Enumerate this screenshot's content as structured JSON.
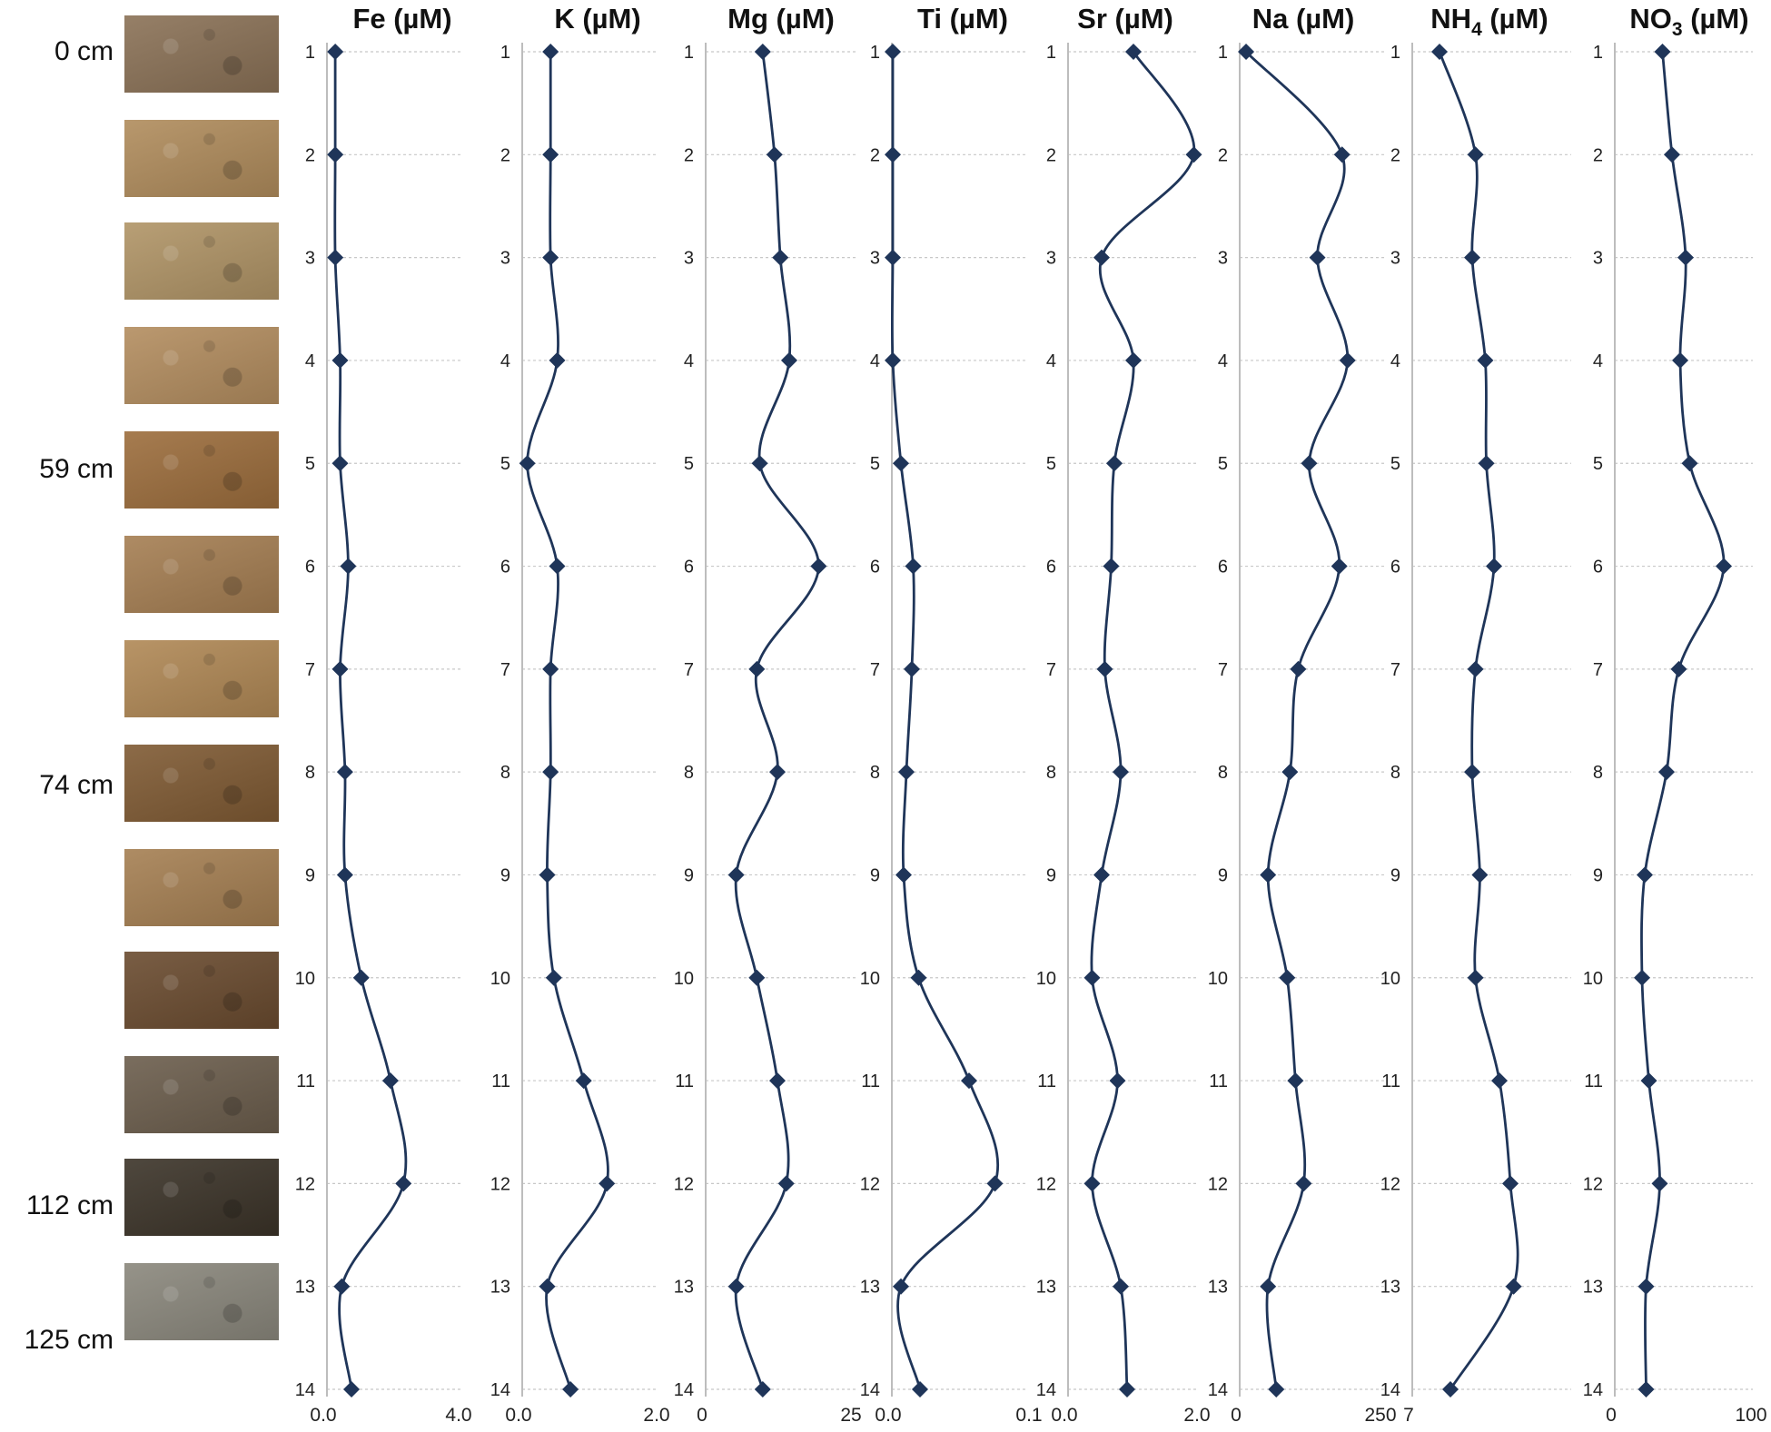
{
  "depth_labels": [
    "0 cm",
    "59 cm",
    "74 cm",
    "112 cm",
    "125 cm"
  ],
  "soil_samples": [
    {
      "color": "#8a7156"
    },
    {
      "color": "#b08c5c"
    },
    {
      "color": "#b09466"
    },
    {
      "color": "#b38d5f"
    },
    {
      "color": "#9c6d3c"
    },
    {
      "color": "#a57e52"
    },
    {
      "color": "#b08855"
    },
    {
      "color": "#7f5a33"
    },
    {
      "color": "#a57f52"
    },
    {
      "color": "#6a4b2f"
    },
    {
      "color": "#6b5d4c"
    },
    {
      "color": "#3b3328"
    },
    {
      "color": "#8a877c"
    }
  ],
  "line_color": "#1f3559",
  "chart_data": {
    "type": "line",
    "y_categories": [
      1,
      2,
      3,
      4,
      5,
      6,
      7,
      8,
      9,
      10,
      11,
      12,
      13,
      14
    ],
    "panels": [
      {
        "title": "Fe (µM)",
        "sub": "",
        "title_tail": "",
        "xlim": [
          0,
          4.0
        ],
        "xtick_labels": [
          "0.0",
          "4.0"
        ],
        "values": [
          0.2,
          0.2,
          0.2,
          0.35,
          0.35,
          0.6,
          0.35,
          0.5,
          0.5,
          1.0,
          1.9,
          2.3,
          0.4,
          0.7
        ]
      },
      {
        "title": "K (µM)",
        "sub": "",
        "title_tail": "",
        "xlim": [
          0,
          2.0
        ],
        "xtick_labels": [
          "0.0",
          "2.0"
        ],
        "values": [
          0.4,
          0.4,
          0.4,
          0.5,
          0.05,
          0.5,
          0.4,
          0.4,
          0.35,
          0.45,
          0.9,
          1.25,
          0.35,
          0.7
        ]
      },
      {
        "title": "Mg (µM)",
        "sub": "",
        "title_tail": "",
        "xlim": [
          0,
          25
        ],
        "xtick_labels": [
          "0",
          "25"
        ],
        "values": [
          10,
          12,
          13,
          14.5,
          9.5,
          19.5,
          9,
          12.5,
          5.5,
          9,
          12.5,
          14,
          5.5,
          10
        ]
      },
      {
        "title": "Ti (µM)",
        "sub": "",
        "title_tail": "",
        "xlim": [
          0,
          0.1
        ],
        "xtick_labels": [
          "0.0",
          "0.1"
        ],
        "values": [
          0,
          0,
          0,
          0,
          0.006,
          0.015,
          0.014,
          0.01,
          0.008,
          0.019,
          0.056,
          0.075,
          0.006,
          0.02
        ]
      },
      {
        "title": "Sr (µM)",
        "sub": "",
        "title_tail": "",
        "xlim": [
          0,
          2.0
        ],
        "xtick_labels": [
          "0.0",
          "2.0"
        ],
        "values": [
          1.0,
          1.95,
          0.5,
          1.0,
          0.7,
          0.65,
          0.55,
          0.8,
          0.5,
          0.35,
          0.75,
          0.35,
          0.8,
          0.9
        ]
      },
      {
        "title": "Na (µM)",
        "sub": "",
        "title_tail": "",
        "xlim": [
          0,
          250
        ],
        "xtick_labels": [
          "0",
          "250"
        ],
        "values": [
          5,
          180,
          135,
          190,
          120,
          175,
          100,
          85,
          45,
          80,
          95,
          110,
          45,
          60
        ]
      },
      {
        "title": "NH",
        "sub": "4",
        "title_tail": " (µM)",
        "xlim": [
          7,
          22
        ],
        "xtick_labels": [
          "7",
          ""
        ],
        "values": [
          9.5,
          12.8,
          12.5,
          13.7,
          13.8,
          14.5,
          12.8,
          12.5,
          13.2,
          12.8,
          15,
          16,
          16.3,
          10.5
        ]
      },
      {
        "title": "NO",
        "sub": "3",
        "title_tail": " (µM)",
        "xlim": [
          0,
          100
        ],
        "xtick_labels": [
          "0",
          "100"
        ],
        "values": [
          35,
          42,
          52,
          48,
          55,
          80,
          47,
          38,
          22,
          20,
          25,
          33,
          23,
          23
        ]
      }
    ]
  }
}
